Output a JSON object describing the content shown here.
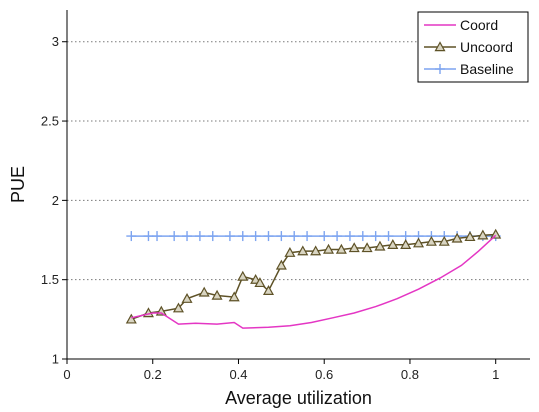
{
  "chart_data": {
    "type": "line",
    "xlabel": "Average utilization",
    "ylabel": "PUE",
    "xlim": [
      0,
      1.08
    ],
    "ylim": [
      1,
      3.2
    ],
    "xticks": [
      0,
      0.2,
      0.4,
      0.6,
      0.8,
      1
    ],
    "xtick_labels": [
      "0",
      "0.2",
      "0.4",
      "0.6",
      "0.8",
      "1"
    ],
    "yticks": [
      1,
      1.5,
      2,
      2.5,
      3
    ],
    "ytick_labels": [
      "1",
      "1.5",
      "2",
      "2.5",
      "3"
    ],
    "grid": "horizontal dotted",
    "legend_position": "top-right",
    "series": [
      {
        "name": "Coord",
        "color": "#e436c4",
        "marker": "none",
        "points": [
          [
            0.15,
            1.26
          ],
          [
            0.2,
            1.29
          ],
          [
            0.22,
            1.29
          ],
          [
            0.26,
            1.22
          ],
          [
            0.3,
            1.225
          ],
          [
            0.35,
            1.22
          ],
          [
            0.39,
            1.23
          ],
          [
            0.41,
            1.195
          ],
          [
            0.47,
            1.2
          ],
          [
            0.52,
            1.21
          ],
          [
            0.57,
            1.23
          ],
          [
            0.62,
            1.26
          ],
          [
            0.67,
            1.29
          ],
          [
            0.72,
            1.33
          ],
          [
            0.77,
            1.38
          ],
          [
            0.82,
            1.44
          ],
          [
            0.87,
            1.51
          ],
          [
            0.92,
            1.59
          ],
          [
            0.96,
            1.68
          ],
          [
            1.0,
            1.78
          ]
        ]
      },
      {
        "name": "Uncoord",
        "color": "#5e5227",
        "marker": "triangle",
        "points": [
          [
            0.15,
            1.25
          ],
          [
            0.19,
            1.29
          ],
          [
            0.22,
            1.3
          ],
          [
            0.26,
            1.32
          ],
          [
            0.28,
            1.38
          ],
          [
            0.32,
            1.42
          ],
          [
            0.35,
            1.4
          ],
          [
            0.39,
            1.39
          ],
          [
            0.41,
            1.52
          ],
          [
            0.44,
            1.5
          ],
          [
            0.45,
            1.48
          ],
          [
            0.47,
            1.43
          ],
          [
            0.5,
            1.59
          ],
          [
            0.52,
            1.67
          ],
          [
            0.55,
            1.68
          ],
          [
            0.58,
            1.68
          ],
          [
            0.61,
            1.69
          ],
          [
            0.64,
            1.69
          ],
          [
            0.67,
            1.7
          ],
          [
            0.7,
            1.7
          ],
          [
            0.73,
            1.71
          ],
          [
            0.76,
            1.72
          ],
          [
            0.79,
            1.72
          ],
          [
            0.82,
            1.73
          ],
          [
            0.85,
            1.74
          ],
          [
            0.88,
            1.74
          ],
          [
            0.91,
            1.76
          ],
          [
            0.94,
            1.77
          ],
          [
            0.97,
            1.78
          ],
          [
            1.0,
            1.785
          ]
        ]
      },
      {
        "name": "Baseline",
        "color": "#7da4f0",
        "marker": "plus",
        "points": [
          [
            0.15,
            1.775
          ],
          [
            0.19,
            1.775
          ],
          [
            0.21,
            1.775
          ],
          [
            0.25,
            1.775
          ],
          [
            0.28,
            1.775
          ],
          [
            0.31,
            1.775
          ],
          [
            0.34,
            1.775
          ],
          [
            0.38,
            1.775
          ],
          [
            0.41,
            1.775
          ],
          [
            0.44,
            1.775
          ],
          [
            0.47,
            1.775
          ],
          [
            0.5,
            1.775
          ],
          [
            0.53,
            1.775
          ],
          [
            0.56,
            1.775
          ],
          [
            0.6,
            1.775
          ],
          [
            0.63,
            1.775
          ],
          [
            0.66,
            1.775
          ],
          [
            0.69,
            1.775
          ],
          [
            0.72,
            1.775
          ],
          [
            0.75,
            1.775
          ],
          [
            0.79,
            1.775
          ],
          [
            0.82,
            1.775
          ],
          [
            0.85,
            1.775
          ],
          [
            0.88,
            1.775
          ],
          [
            0.91,
            1.775
          ],
          [
            0.94,
            1.775
          ],
          [
            0.97,
            1.775
          ],
          [
            1.0,
            1.775
          ]
        ]
      }
    ]
  }
}
